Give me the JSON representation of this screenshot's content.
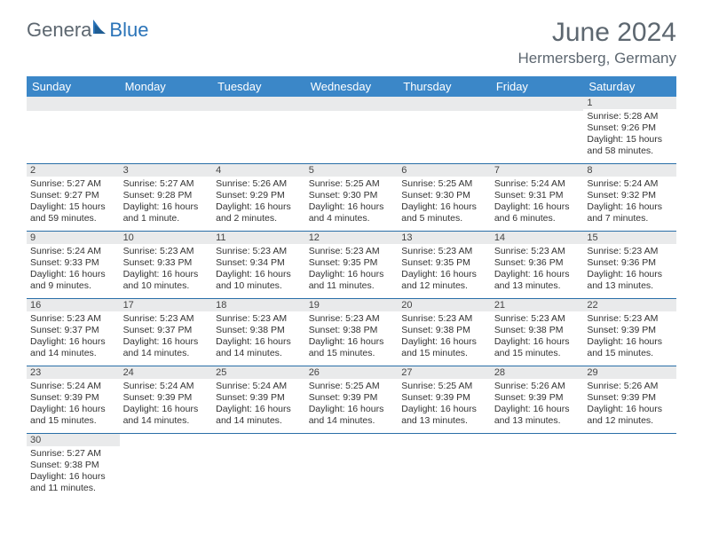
{
  "brand": {
    "part1": "Genera",
    "part2": "Blue"
  },
  "title": "June 2024",
  "location": "Hermersberg, Germany",
  "weekdays": [
    "Sunday",
    "Monday",
    "Tuesday",
    "Wednesday",
    "Thursday",
    "Friday",
    "Saturday"
  ],
  "colors": {
    "header_bg": "#3b87c8",
    "header_text": "#ffffff",
    "daynum_bg": "#e9eaeb",
    "border": "#2a6fa8",
    "title_color": "#5d6770",
    "brand_gray": "#5d6770",
    "brand_blue": "#2a73b8"
  },
  "weeks": [
    [
      null,
      null,
      null,
      null,
      null,
      null,
      {
        "n": "1",
        "sr": "Sunrise: 5:28 AM",
        "ss": "Sunset: 9:26 PM",
        "dl": "Daylight: 15 hours and 58 minutes."
      }
    ],
    [
      {
        "n": "2",
        "sr": "Sunrise: 5:27 AM",
        "ss": "Sunset: 9:27 PM",
        "dl": "Daylight: 15 hours and 59 minutes."
      },
      {
        "n": "3",
        "sr": "Sunrise: 5:27 AM",
        "ss": "Sunset: 9:28 PM",
        "dl": "Daylight: 16 hours and 1 minute."
      },
      {
        "n": "4",
        "sr": "Sunrise: 5:26 AM",
        "ss": "Sunset: 9:29 PM",
        "dl": "Daylight: 16 hours and 2 minutes."
      },
      {
        "n": "5",
        "sr": "Sunrise: 5:25 AM",
        "ss": "Sunset: 9:30 PM",
        "dl": "Daylight: 16 hours and 4 minutes."
      },
      {
        "n": "6",
        "sr": "Sunrise: 5:25 AM",
        "ss": "Sunset: 9:30 PM",
        "dl": "Daylight: 16 hours and 5 minutes."
      },
      {
        "n": "7",
        "sr": "Sunrise: 5:24 AM",
        "ss": "Sunset: 9:31 PM",
        "dl": "Daylight: 16 hours and 6 minutes."
      },
      {
        "n": "8",
        "sr": "Sunrise: 5:24 AM",
        "ss": "Sunset: 9:32 PM",
        "dl": "Daylight: 16 hours and 7 minutes."
      }
    ],
    [
      {
        "n": "9",
        "sr": "Sunrise: 5:24 AM",
        "ss": "Sunset: 9:33 PM",
        "dl": "Daylight: 16 hours and 9 minutes."
      },
      {
        "n": "10",
        "sr": "Sunrise: 5:23 AM",
        "ss": "Sunset: 9:33 PM",
        "dl": "Daylight: 16 hours and 10 minutes."
      },
      {
        "n": "11",
        "sr": "Sunrise: 5:23 AM",
        "ss": "Sunset: 9:34 PM",
        "dl": "Daylight: 16 hours and 10 minutes."
      },
      {
        "n": "12",
        "sr": "Sunrise: 5:23 AM",
        "ss": "Sunset: 9:35 PM",
        "dl": "Daylight: 16 hours and 11 minutes."
      },
      {
        "n": "13",
        "sr": "Sunrise: 5:23 AM",
        "ss": "Sunset: 9:35 PM",
        "dl": "Daylight: 16 hours and 12 minutes."
      },
      {
        "n": "14",
        "sr": "Sunrise: 5:23 AM",
        "ss": "Sunset: 9:36 PM",
        "dl": "Daylight: 16 hours and 13 minutes."
      },
      {
        "n": "15",
        "sr": "Sunrise: 5:23 AM",
        "ss": "Sunset: 9:36 PM",
        "dl": "Daylight: 16 hours and 13 minutes."
      }
    ],
    [
      {
        "n": "16",
        "sr": "Sunrise: 5:23 AM",
        "ss": "Sunset: 9:37 PM",
        "dl": "Daylight: 16 hours and 14 minutes."
      },
      {
        "n": "17",
        "sr": "Sunrise: 5:23 AM",
        "ss": "Sunset: 9:37 PM",
        "dl": "Daylight: 16 hours and 14 minutes."
      },
      {
        "n": "18",
        "sr": "Sunrise: 5:23 AM",
        "ss": "Sunset: 9:38 PM",
        "dl": "Daylight: 16 hours and 14 minutes."
      },
      {
        "n": "19",
        "sr": "Sunrise: 5:23 AM",
        "ss": "Sunset: 9:38 PM",
        "dl": "Daylight: 16 hours and 15 minutes."
      },
      {
        "n": "20",
        "sr": "Sunrise: 5:23 AM",
        "ss": "Sunset: 9:38 PM",
        "dl": "Daylight: 16 hours and 15 minutes."
      },
      {
        "n": "21",
        "sr": "Sunrise: 5:23 AM",
        "ss": "Sunset: 9:38 PM",
        "dl": "Daylight: 16 hours and 15 minutes."
      },
      {
        "n": "22",
        "sr": "Sunrise: 5:23 AM",
        "ss": "Sunset: 9:39 PM",
        "dl": "Daylight: 16 hours and 15 minutes."
      }
    ],
    [
      {
        "n": "23",
        "sr": "Sunrise: 5:24 AM",
        "ss": "Sunset: 9:39 PM",
        "dl": "Daylight: 16 hours and 15 minutes."
      },
      {
        "n": "24",
        "sr": "Sunrise: 5:24 AM",
        "ss": "Sunset: 9:39 PM",
        "dl": "Daylight: 16 hours and 14 minutes."
      },
      {
        "n": "25",
        "sr": "Sunrise: 5:24 AM",
        "ss": "Sunset: 9:39 PM",
        "dl": "Daylight: 16 hours and 14 minutes."
      },
      {
        "n": "26",
        "sr": "Sunrise: 5:25 AM",
        "ss": "Sunset: 9:39 PM",
        "dl": "Daylight: 16 hours and 14 minutes."
      },
      {
        "n": "27",
        "sr": "Sunrise: 5:25 AM",
        "ss": "Sunset: 9:39 PM",
        "dl": "Daylight: 16 hours and 13 minutes."
      },
      {
        "n": "28",
        "sr": "Sunrise: 5:26 AM",
        "ss": "Sunset: 9:39 PM",
        "dl": "Daylight: 16 hours and 13 minutes."
      },
      {
        "n": "29",
        "sr": "Sunrise: 5:26 AM",
        "ss": "Sunset: 9:39 PM",
        "dl": "Daylight: 16 hours and 12 minutes."
      }
    ],
    [
      {
        "n": "30",
        "sr": "Sunrise: 5:27 AM",
        "ss": "Sunset: 9:38 PM",
        "dl": "Daylight: 16 hours and 11 minutes."
      },
      null,
      null,
      null,
      null,
      null,
      null
    ]
  ]
}
